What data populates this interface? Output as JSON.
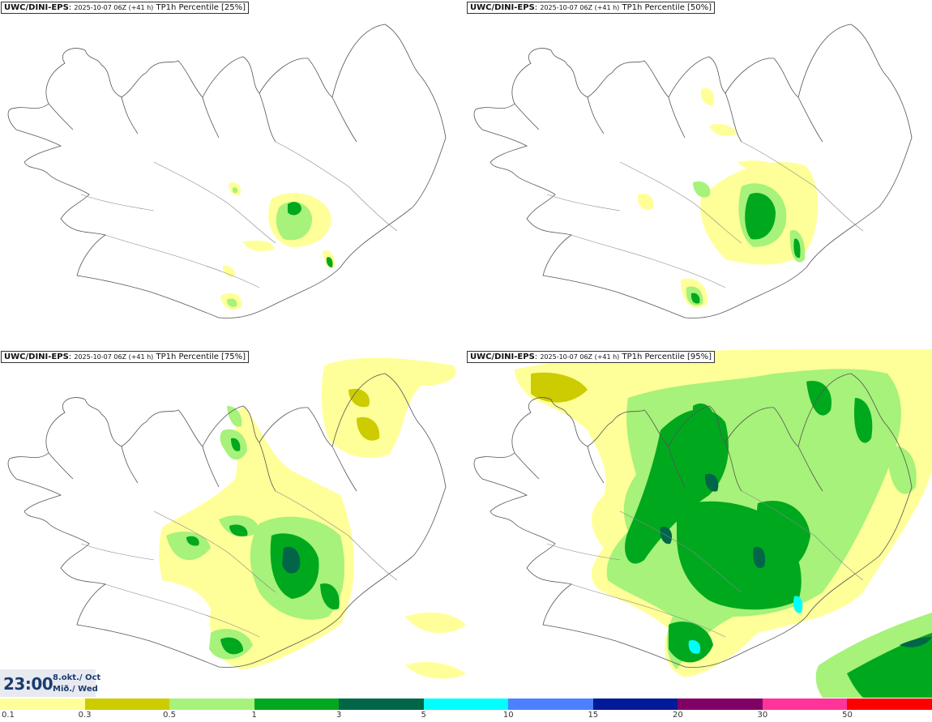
{
  "panels": [
    {
      "model": "UWC/DINI-EPS",
      "run": "2025-10-07 06Z (+41 h)",
      "product": "TP1h Percentile [25%]"
    },
    {
      "model": "UWC/DINI-EPS",
      "run": "2025-10-07 06Z (+41 h)",
      "product": "TP1h Percentile [50%]"
    },
    {
      "model": "UWC/DINI-EPS",
      "run": "2025-10-07 06Z (+41 h)",
      "product": "TP1h Percentile [75%]"
    },
    {
      "model": "UWC/DINI-EPS",
      "run": "2025-10-07 06Z (+41 h)",
      "product": "TP1h Percentile [95%]"
    }
  ],
  "valid_time": {
    "time": "23:00",
    "date": "8.okt./ Oct",
    "day": "Mið./ Wed"
  },
  "legend": {
    "colors": [
      "#ffff99",
      "#cccc00",
      "#a6f27a",
      "#00a81e",
      "#006647",
      "#00ffff",
      "#4d80ff",
      "#001a99",
      "#800066",
      "#ff3399",
      "#ff0000"
    ],
    "labels": [
      "0.1",
      "0.3",
      "0.5",
      "1",
      "3",
      "5",
      "10",
      "15",
      "20",
      "30",
      "50"
    ]
  }
}
